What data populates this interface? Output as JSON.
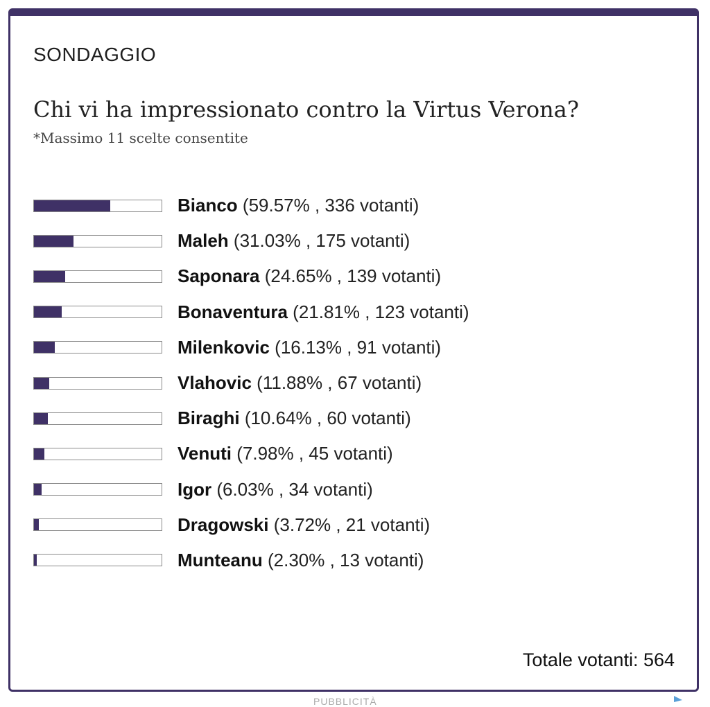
{
  "poll": {
    "label": "SONDAGGIO",
    "question": "Chi vi ha impressionato contro la Virtus Verona?",
    "note": "*Massimo 11 scelte consentite",
    "bar_color": "#3f3166",
    "options": [
      {
        "name": "Bianco",
        "percent": 59.57,
        "stats": "(59.57% , 336 votanti)"
      },
      {
        "name": "Maleh",
        "percent": 31.03,
        "stats": "(31.03% , 175 votanti)"
      },
      {
        "name": "Saponara",
        "percent": 24.65,
        "stats": "(24.65% , 139 votanti)"
      },
      {
        "name": "Bonaventura",
        "percent": 21.81,
        "stats": "(21.81% , 123 votanti)"
      },
      {
        "name": "Milenkovic",
        "percent": 16.13,
        "stats": "(16.13% , 91 votanti)"
      },
      {
        "name": "Vlahovic",
        "percent": 11.88,
        "stats": "(11.88% , 67 votanti)"
      },
      {
        "name": "Biraghi",
        "percent": 10.64,
        "stats": "(10.64% , 60 votanti)"
      },
      {
        "name": "Venuti",
        "percent": 7.98,
        "stats": "(7.98% , 45 votanti)"
      },
      {
        "name": "Igor",
        "percent": 6.03,
        "stats": "(6.03% , 34 votanti)"
      },
      {
        "name": "Dragowski",
        "percent": 3.72,
        "stats": "(3.72% , 21 votanti)"
      },
      {
        "name": "Munteanu",
        "percent": 2.3,
        "stats": "(2.30% , 13 votanti)"
      }
    ],
    "total": "Totale votanti: 564"
  },
  "footer": {
    "text": "PUBBLICITÀ",
    "icon": "adchoices-icon"
  }
}
